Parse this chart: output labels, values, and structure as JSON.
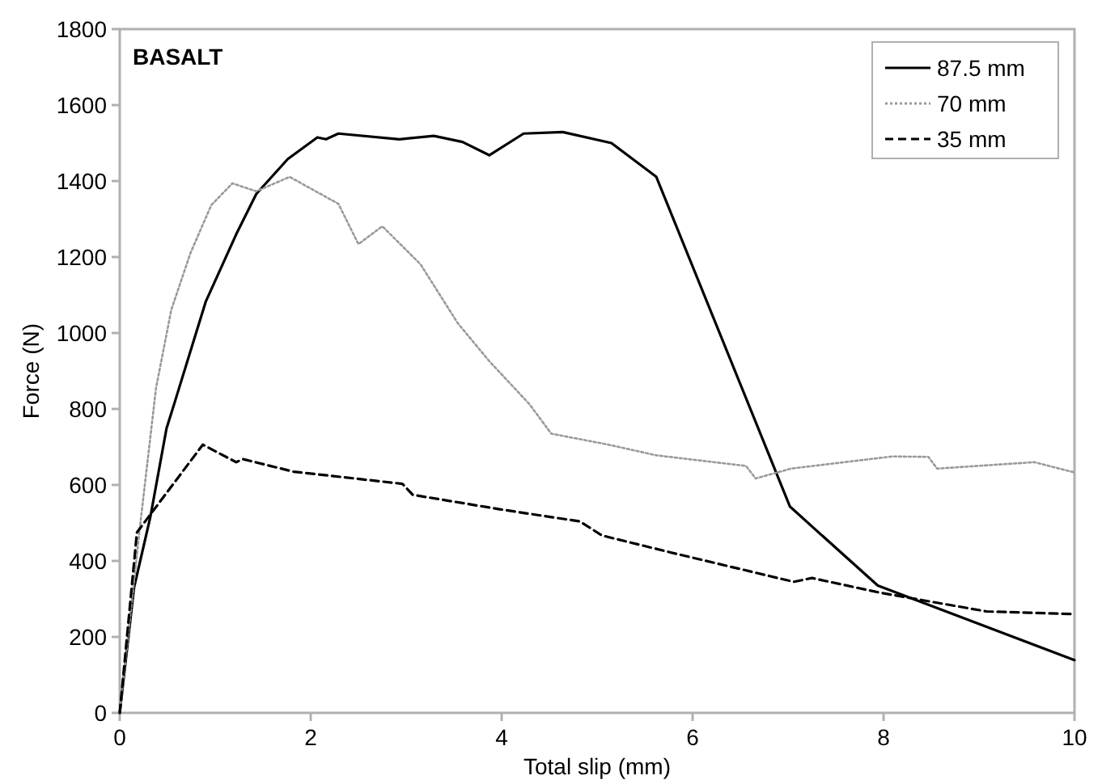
{
  "chart_data": {
    "type": "line",
    "xlabel": "Total slip (mm)",
    "ylabel": "Force (N)",
    "annotations": [
      "BASALT"
    ],
    "xlim": [
      0,
      10
    ],
    "xticks": [
      0,
      2,
      4,
      6,
      8,
      10
    ],
    "ylim": [
      0,
      1800
    ],
    "yticks": [
      0,
      200,
      400,
      600,
      800,
      1000,
      1200,
      1400,
      1600,
      1800
    ],
    "grid": false,
    "legend": "top right",
    "marker": "none",
    "series": [
      {
        "name": "87.5 mm",
        "color": "#000000",
        "line_style": "solid",
        "x": [
          0,
          0.15,
          0.32,
          0.49,
          0.57,
          0.9,
          1.22,
          1.43,
          1.76,
          2.07,
          2.16,
          2.29,
          2.93,
          3.29,
          3.59,
          3.87,
          4.23,
          4.64,
          5.15,
          5.62,
          7.02,
          7.94,
          10
        ],
        "values": [
          0,
          330,
          515,
          749,
          813,
          1082,
          1260,
          1366,
          1458,
          1515,
          1510,
          1525,
          1510,
          1519,
          1503,
          1468,
          1525,
          1529,
          1500,
          1411,
          543,
          335,
          139
        ]
      },
      {
        "name": "70 mm",
        "color": "#999999",
        "line_style": "dotted",
        "x": [
          0,
          0.21,
          0.38,
          0.54,
          0.74,
          0.96,
          1.18,
          1.43,
          1.78,
          2.29,
          2.5,
          2.75,
          3.15,
          3.54,
          3.87,
          4.29,
          4.52,
          5.12,
          5.62,
          6.56,
          6.66,
          7.03,
          8.09,
          8.47,
          8.56,
          9.58,
          10
        ],
        "values": [
          0,
          486,
          855,
          1061,
          1210,
          1337,
          1394,
          1373,
          1411,
          1340,
          1234,
          1281,
          1181,
          1026,
          926,
          813,
          735,
          706,
          678,
          650,
          617,
          643,
          675,
          674,
          643,
          660,
          633
        ]
      },
      {
        "name": "35 mm",
        "color": "#000000",
        "line_style": "dashed",
        "x": [
          0,
          0.18,
          0.32,
          0.87,
          1.22,
          1.29,
          1.82,
          2.96,
          3.07,
          3.98,
          4.82,
          5.05,
          5.76,
          7.06,
          7.25,
          7.97,
          9.08,
          10
        ],
        "values": [
          0,
          475,
          522,
          706,
          660,
          668,
          635,
          603,
          574,
          536,
          504,
          467,
          423,
          345,
          355,
          316,
          267,
          260
        ]
      }
    ]
  }
}
